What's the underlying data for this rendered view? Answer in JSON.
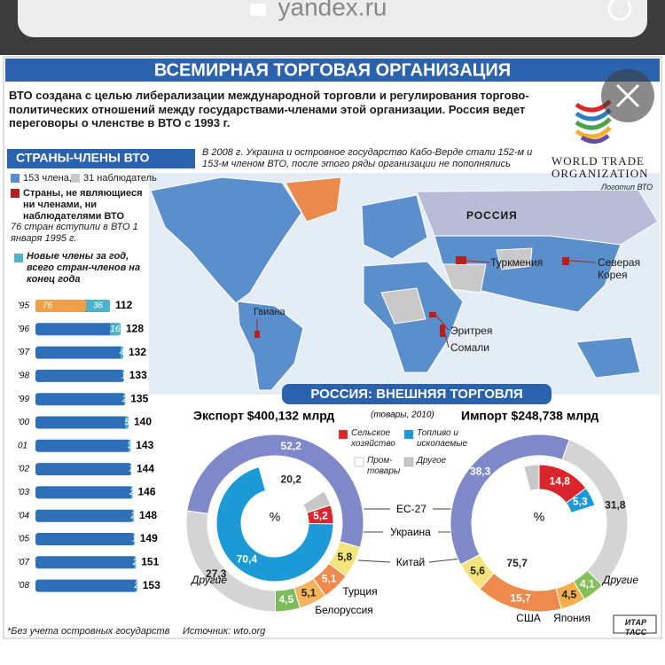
{
  "browser": {
    "url": "yandex.ru"
  },
  "header": {
    "title": "ВСЕМИРНАЯ ТОРГОВАЯ ОРГАНИЗАЦИЯ",
    "intro": "ВТО создана с целью либерализации международной торговли и регулирования торгово-политических отношений между государствами-членами этой организации. Россия ведет переговоры о членстве в ВТО с 1993 г.",
    "logo": {
      "line1": "WORLD TRADE",
      "line2": "ORGANIZATION",
      "caption": "Логотип ВТО"
    }
  },
  "members": {
    "title": "СТРАНЫ-ЧЛЕНЫ ВТО",
    "note": "В 2008 г. Украина и островное государство Кабо-Верде стали 152-м и 153-м членом ВТО, после этого ряды организации не пополнялись",
    "legend": {
      "members": "153 члена,",
      "observers": "31 наблюдатель",
      "others": "Страны, не являющиеся ни членами, ни наблюдателями ВТО"
    },
    "map_labels": [
      "РОССИЯ",
      "Туркмения",
      "Северая Корея",
      "Гвиана",
      "Эритрея",
      "Сомали"
    ]
  },
  "trade": {
    "title": "РОССИЯ: ВНЕШНЯЯ ТОРГОВЛЯ"
  },
  "chart_data": [
    {
      "type": "bar",
      "orientation": "horizontal",
      "categories": [
        "'95",
        "'96",
        "'97",
        "'98",
        "'99",
        "'00",
        "01",
        "'02",
        "'03",
        "'04",
        "'05",
        "'07",
        "'08"
      ],
      "founding": 76,
      "founding_label": "76 стран вступили в ВТО 1 января 1995 г.",
      "founding_color": "#f0a04b",
      "totals": [
        112,
        128,
        132,
        133,
        135,
        140,
        143,
        144,
        146,
        148,
        149,
        151,
        153
      ],
      "totals_color": "#2f6fb8",
      "series": [
        {
          "name": "Новые члены за год, всего стран-членов на конец года",
          "color": "#4fb3c8",
          "values": [
            36,
            16,
            4,
            1,
            2,
            5,
            3,
            1,
            2,
            2,
            1,
            2,
            2
          ]
        }
      ]
    },
    {
      "type": "donut",
      "center_label": "%",
      "subtitle": "(товары, 2010)",
      "categories": [
        "ЕС-27",
        "Украина",
        "Китай",
        "Турция",
        "Белоруссия",
        "США",
        "Япония",
        "Другие"
      ],
      "colors": [
        "#7f88c8",
        "#f5e47c",
        "#ee8a4e",
        "#f6b45c",
        "#7dbb5c",
        "#f3b04a",
        "#86c05a",
        "#d4d4d4"
      ],
      "series": [
        {
          "name": "Экспорт $400,132 млрд",
          "values": [
            52.2,
            5.8,
            5.1,
            5.1,
            4.5,
            null,
            null,
            27.3
          ],
          "value_labels": [
            "52,2",
            "5,8",
            "5,1",
            "5,1",
            "4,5",
            null,
            null,
            "27,3"
          ]
        },
        {
          "name": "Импорт $248,738 млрд",
          "values": [
            38.3,
            5.6,
            15.7,
            null,
            null,
            4.5,
            4.1,
            31.8
          ],
          "value_labels": [
            "38,3",
            "5,6",
            "15,7",
            null,
            null,
            "4,5",
            "4,1",
            "31,8"
          ]
        }
      ],
      "inner_categories": [
        "Сельское хозяйство",
        "Топливо и ископаемые",
        "Пром-товары",
        "Другое"
      ],
      "inner_colors": [
        "#d9252b",
        "#1c9ad6",
        "#ffffff",
        "#c8c8c8"
      ],
      "inner_series": [
        {
          "values": [
            5.2,
            70.4,
            20.2,
            4.2
          ],
          "value_labels": [
            "5,2",
            "70,4",
            "20,2",
            null
          ]
        },
        {
          "values": [
            14.8,
            5.3,
            75.7,
            4.2
          ],
          "value_labels": [
            "14,8",
            "5,3",
            "75,7",
            null
          ]
        }
      ]
    }
  ],
  "footer": {
    "note": "*Без учета островных государств",
    "source": "Источник: wto.org",
    "agency": "ИТАР ТАСС"
  }
}
